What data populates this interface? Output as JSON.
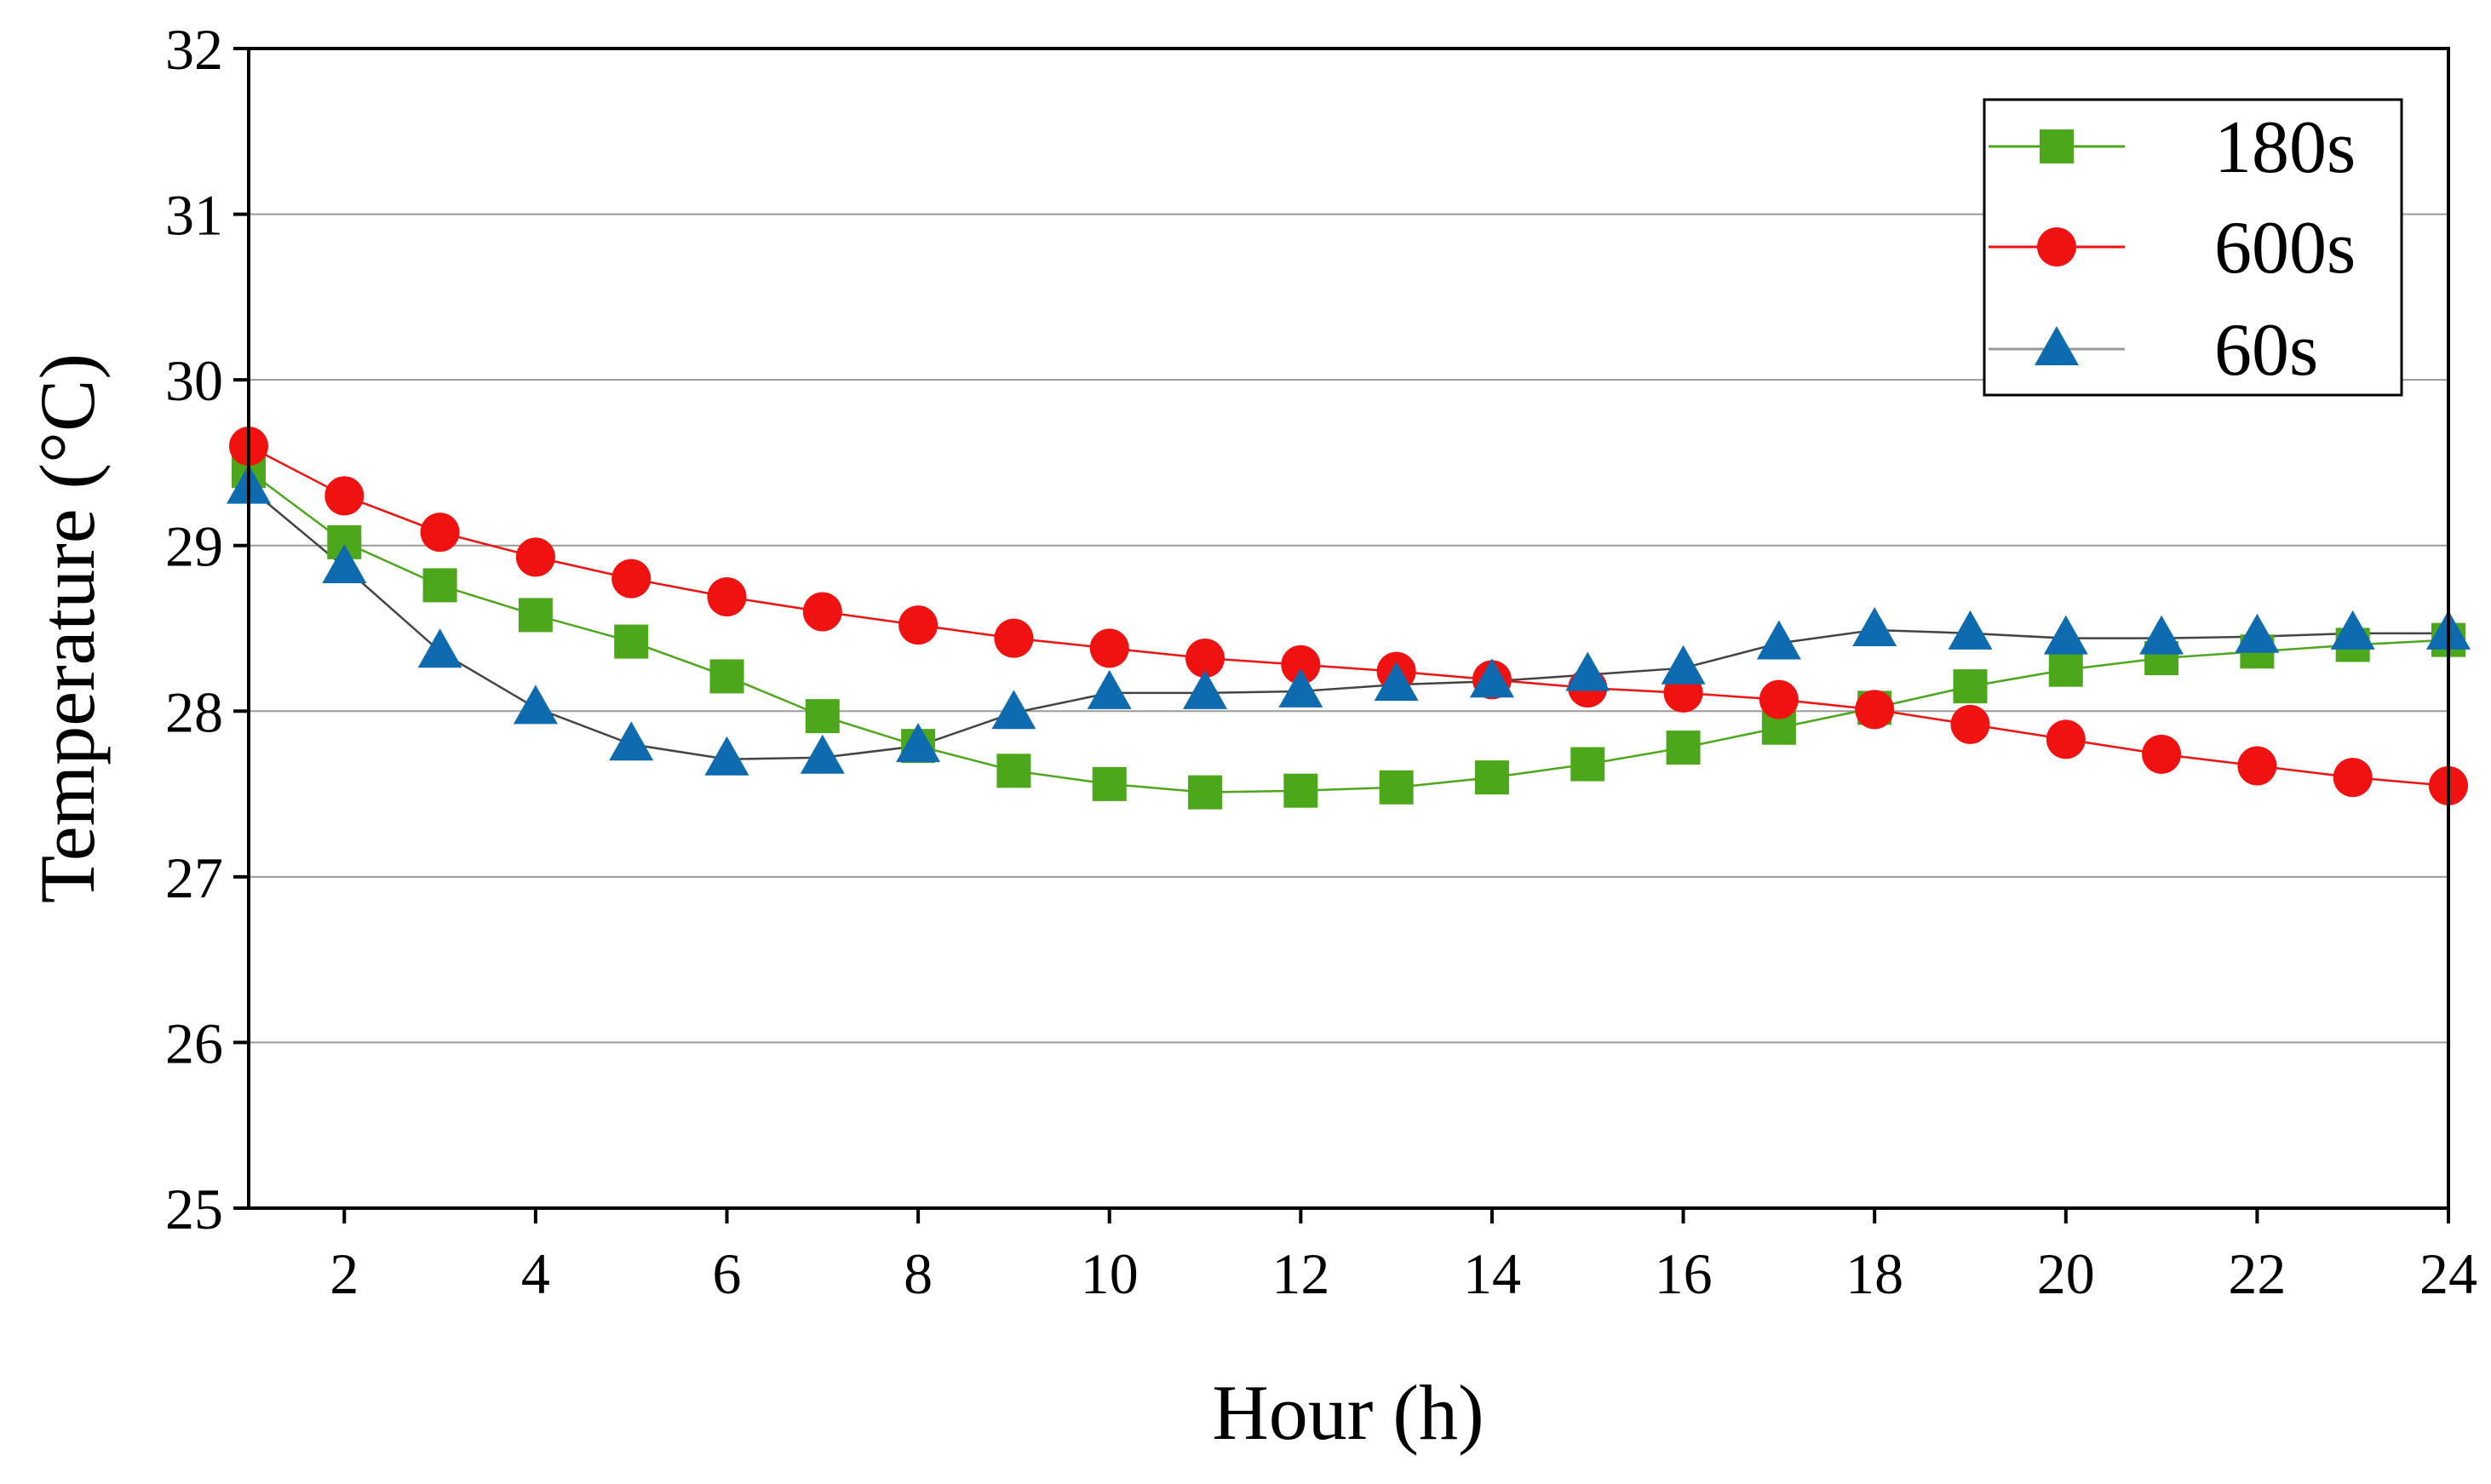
{
  "chart_data": {
    "type": "line",
    "title": "",
    "xlabel": "Hour (h)",
    "ylabel": "Temperature (°C)",
    "xlim": [
      1,
      24
    ],
    "ylim": [
      25,
      32
    ],
    "xticks": [
      2,
      4,
      6,
      8,
      10,
      12,
      14,
      16,
      18,
      20,
      22,
      24
    ],
    "yticks": [
      25,
      26,
      27,
      28,
      29,
      30,
      31,
      32
    ],
    "grid": "horizontal",
    "legend_position": "top-right",
    "x": [
      1,
      2,
      3,
      4,
      5,
      6,
      7,
      8,
      9,
      10,
      11,
      12,
      13,
      14,
      15,
      16,
      17,
      18,
      19,
      20,
      21,
      22,
      23,
      24
    ],
    "series": [
      {
        "name": "180s",
        "color": "#4ca81a",
        "marker": "square",
        "values": [
          29.45,
          29.02,
          28.76,
          28.58,
          28.42,
          28.21,
          27.97,
          27.79,
          27.64,
          27.56,
          27.51,
          27.52,
          27.54,
          27.6,
          27.68,
          27.78,
          27.9,
          28.02,
          28.15,
          28.25,
          28.32,
          28.36,
          28.4,
          28.43
        ]
      },
      {
        "name": "600s",
        "color": "#f01111",
        "marker": "circle",
        "values": [
          29.6,
          29.3,
          29.08,
          28.93,
          28.8,
          28.69,
          28.6,
          28.52,
          28.44,
          28.38,
          28.32,
          28.28,
          28.24,
          28.19,
          28.14,
          28.11,
          28.07,
          28.01,
          27.92,
          27.83,
          27.74,
          27.67,
          27.6,
          27.55
        ]
      },
      {
        "name": "60s",
        "color": "#0e6bb0",
        "marker": "triangle",
        "values": [
          29.35,
          28.87,
          28.36,
          28.02,
          27.8,
          27.71,
          27.72,
          27.79,
          27.99,
          28.11,
          28.11,
          28.12,
          28.16,
          28.18,
          28.22,
          28.26,
          28.41,
          28.49,
          28.47,
          28.44,
          28.44,
          28.45,
          28.47,
          28.47
        ]
      }
    ]
  }
}
